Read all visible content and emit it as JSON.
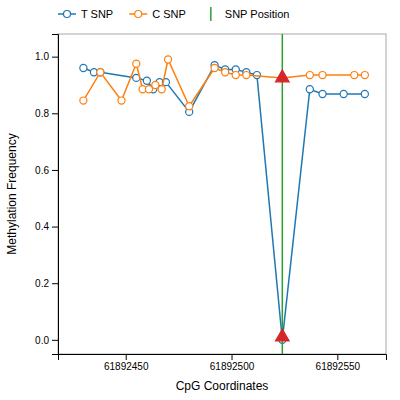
{
  "chart_data": {
    "type": "line",
    "x_label": "CpG Coordinates",
    "y_label": "Methylation Frequency",
    "xlim": [
      61892418,
      61892573
    ],
    "ylim": [
      -0.05,
      1.08
    ],
    "xticks": [
      61892450,
      61892500,
      61892550
    ],
    "yticks": [
      {
        "value": 0.0,
        "label": "0.0"
      },
      0.2,
      0.4,
      0.6,
      0.8,
      {
        "value": 1.0,
        "label": "1.0"
      }
    ],
    "grid": false,
    "legend": "top",
    "series": [
      {
        "name": "T SNP",
        "type": "line",
        "marker": "circle",
        "x": [
          61892430,
          61892435,
          61892438,
          61892455,
          61892460,
          61892463,
          61892466,
          61892469,
          61892480,
          61892492,
          61892497,
          61892502,
          61892507,
          61892512,
          61892524,
          61892537,
          61892543,
          61892553,
          61892563
        ],
        "values": [
          0.96,
          0.945,
          0.945,
          0.925,
          0.915,
          0.885,
          0.91,
          0.91,
          0.805,
          0.97,
          0.955,
          0.955,
          0.945,
          0.935,
          0.0,
          0.885,
          0.868,
          0.868,
          0.868
        ]
      },
      {
        "name": "C SNP",
        "type": "line",
        "marker": "circle",
        "x": [
          61892430,
          61892438,
          61892448,
          61892455,
          61892458,
          61892461,
          61892464,
          61892467,
          61892470,
          61892480,
          61892492,
          61892497,
          61892502,
          61892507,
          61892524,
          61892537,
          61892543,
          61892558,
          61892563
        ],
        "values": [
          0.845,
          0.945,
          0.845,
          0.975,
          0.885,
          0.885,
          0.9,
          0.885,
          0.99,
          0.825,
          0.96,
          0.945,
          0.935,
          0.935,
          0.925,
          0.935,
          0.935,
          0.935,
          0.935
        ]
      },
      {
        "name": "SNP Position",
        "type": "vline",
        "x": [
          61892524
        ]
      },
      {
        "type": "scatter",
        "marker": "triangle",
        "x": [
          61892524,
          61892524
        ],
        "values": [
          0.925,
          0.01
        ]
      }
    ]
  }
}
